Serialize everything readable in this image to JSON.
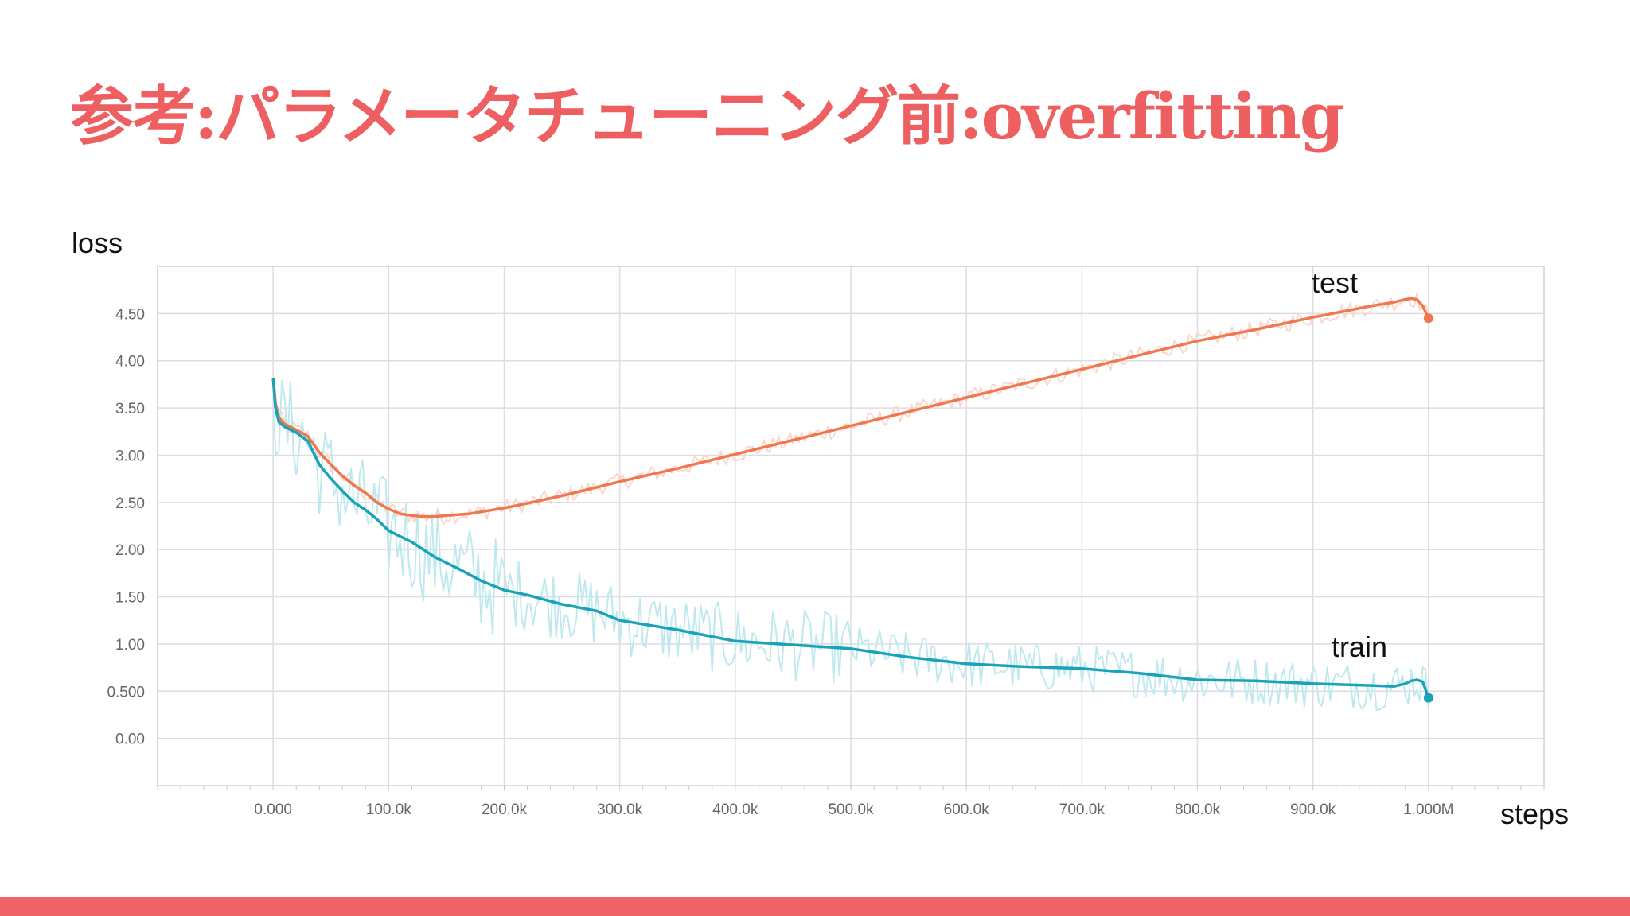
{
  "slide": {
    "title": "参考:パラメータチューニング前:overfitting",
    "title_color": "#ee5f61",
    "accent_bar_color": "#f06467"
  },
  "chart_data": {
    "type": "line",
    "ylabel": "loss",
    "xlabel": "steps",
    "x_tick_labels": [
      "0.000",
      "100.0k",
      "200.0k",
      "300.0k",
      "400.0k",
      "500.0k",
      "600.0k",
      "700.0k",
      "800.0k",
      "900.0k",
      "1.000M"
    ],
    "y_tick_labels": [
      "0.00",
      "0.500",
      "1.00",
      "1.50",
      "2.00",
      "2.50",
      "3.00",
      "3.50",
      "4.00",
      "4.50"
    ],
    "xlim": [
      -100000,
      1100000
    ],
    "ylim": [
      -0.5,
      5.0
    ],
    "grid": true,
    "series": [
      {
        "name": "test",
        "color": "#f0784f",
        "raw_color": "#fad7cc",
        "x": [
          0,
          2000,
          5000,
          10000,
          20000,
          30000,
          40000,
          50000,
          60000,
          70000,
          80000,
          90000,
          100000,
          110000,
          120000,
          130000,
          140000,
          150000,
          160000,
          170000,
          180000,
          200000,
          220000,
          250000,
          300000,
          350000,
          400000,
          450000,
          500000,
          550000,
          600000,
          650000,
          700000,
          750000,
          800000,
          850000,
          900000,
          950000,
          970000,
          980000,
          985000,
          990000,
          995000,
          1000000
        ],
        "y": [
          3.82,
          3.55,
          3.4,
          3.33,
          3.27,
          3.2,
          3.03,
          2.9,
          2.78,
          2.68,
          2.6,
          2.5,
          2.43,
          2.38,
          2.36,
          2.35,
          2.35,
          2.36,
          2.37,
          2.38,
          2.4,
          2.44,
          2.49,
          2.57,
          2.72,
          2.86,
          3.01,
          3.16,
          3.31,
          3.46,
          3.61,
          3.76,
          3.91,
          4.06,
          4.21,
          4.33,
          4.46,
          4.58,
          4.62,
          4.65,
          4.66,
          4.65,
          4.58,
          4.45
        ]
      },
      {
        "name": "train",
        "color": "#1aa3b7",
        "raw_color": "#bfe9ee",
        "x": [
          0,
          2000,
          5000,
          10000,
          20000,
          30000,
          40000,
          50000,
          60000,
          70000,
          80000,
          90000,
          100000,
          120000,
          140000,
          160000,
          180000,
          200000,
          220000,
          250000,
          280000,
          300000,
          350000,
          400000,
          450000,
          500000,
          550000,
          600000,
          650000,
          700000,
          750000,
          800000,
          850000,
          900000,
          950000,
          970000,
          980000,
          985000,
          990000,
          995000,
          1000000
        ],
        "y": [
          3.82,
          3.5,
          3.35,
          3.3,
          3.24,
          3.15,
          2.9,
          2.75,
          2.62,
          2.5,
          2.42,
          2.32,
          2.2,
          2.08,
          1.92,
          1.8,
          1.67,
          1.57,
          1.52,
          1.42,
          1.35,
          1.25,
          1.15,
          1.03,
          0.99,
          0.95,
          0.86,
          0.79,
          0.76,
          0.74,
          0.69,
          0.62,
          0.61,
          0.58,
          0.56,
          0.55,
          0.58,
          0.61,
          0.62,
          0.6,
          0.43
        ]
      }
    ]
  }
}
